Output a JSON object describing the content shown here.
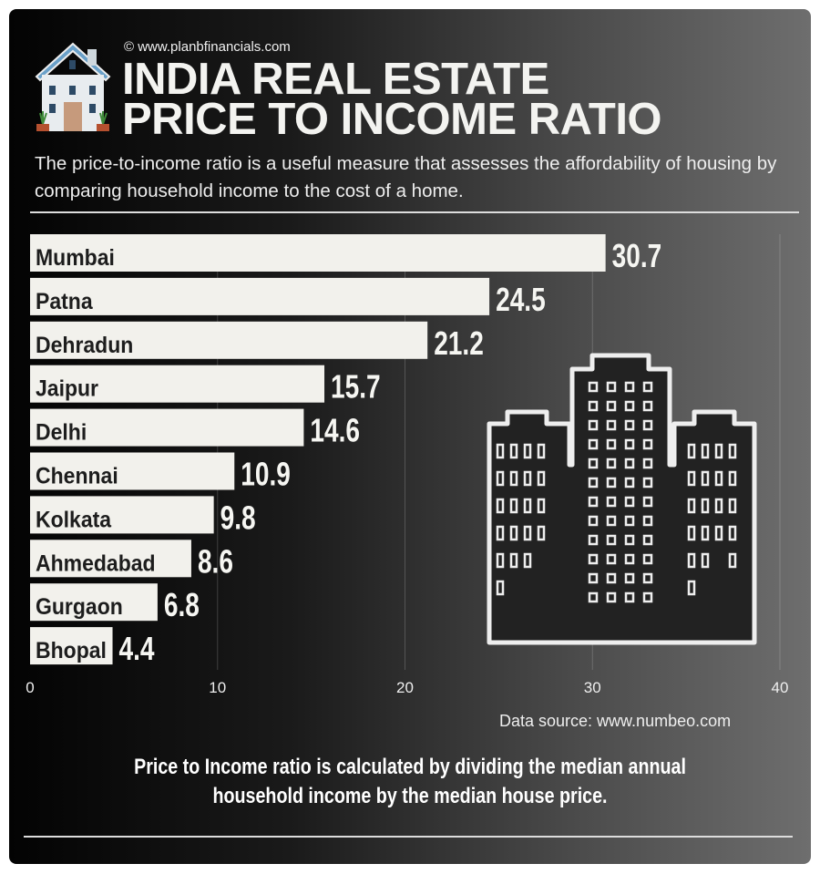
{
  "header": {
    "copyright": "© www.planbfinancials.com",
    "title_line1": "INDIA REAL ESTATE",
    "title_line2": "PRICE TO INCOME RATIO",
    "subtitle": "The price-to-income ratio is a useful measure that assesses the affordability of housing by comparing household income to the cost of a home."
  },
  "chart_data": {
    "type": "bar",
    "orientation": "horizontal",
    "title": "India Real Estate Price to Income Ratio",
    "categories": [
      "Mumbai",
      "Patna",
      "Dehradun",
      "Jaipur",
      "Delhi",
      "Chennai",
      "Kolkata",
      "Ahmedabad",
      "Gurgaon",
      "Bhopal"
    ],
    "values": [
      30.7,
      24.5,
      21.2,
      15.7,
      14.6,
      10.9,
      9.8,
      8.6,
      6.8,
      4.4
    ],
    "value_labels": [
      "30.7",
      "24.5",
      "21.2",
      "15.7",
      "14.6",
      "10.9",
      "9.8",
      "8.6",
      "6.8",
      "4.4"
    ],
    "xlim": [
      0,
      40
    ],
    "xticks": [
      "0",
      "10",
      "20",
      "30",
      "40"
    ],
    "grid": true,
    "xlabel": "",
    "ylabel": "",
    "bar_color": "#f2f1ec"
  },
  "footer": {
    "source": "Data source: www.numbeo.com",
    "note": "Price to Income ratio is calculated by dividing the median annual household income by the median house price."
  },
  "icons": [
    "house-icon",
    "buildings-icon"
  ]
}
